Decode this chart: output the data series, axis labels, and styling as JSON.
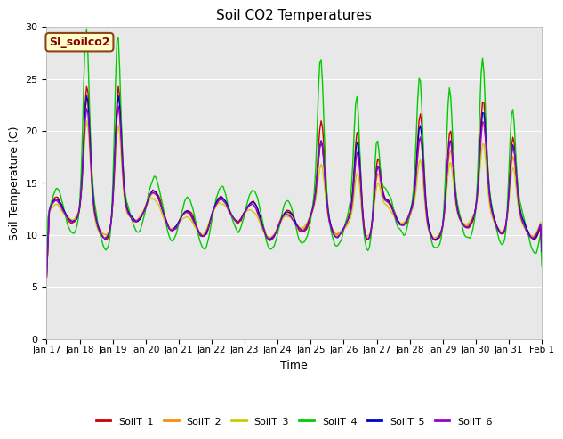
{
  "title": "Soil CO2 Temperatures",
  "xlabel": "Time",
  "ylabel": "Soil Temperature (C)",
  "ylim": [
    0,
    30
  ],
  "yticks": [
    0,
    5,
    10,
    15,
    20,
    25,
    30
  ],
  "annotation_text": "SI_soilco2",
  "annotation_color": "#8B0000",
  "annotation_bg": "#FFFFCC",
  "annotation_border": "#8B4513",
  "series_colors": [
    "#CC0000",
    "#FF8C00",
    "#CCCC00",
    "#00CC00",
    "#0000CC",
    "#9900CC"
  ],
  "series_names": [
    "SoilT_1",
    "SoilT_2",
    "SoilT_3",
    "SoilT_4",
    "SoilT_5",
    "SoilT_6"
  ],
  "bg_color": "#E8E8E8",
  "tick_labels": [
    "Jan 17",
    "Jan 18",
    "Jan 19",
    "Jan 20",
    "Jan 21",
    "Jan 22",
    "Jan 23",
    "Jan 24",
    "Jan 25",
    "Jan 26",
    "Jan 27",
    "Jan 28",
    "Jan 29",
    "Jan 30",
    "Jan 31",
    "Feb 1"
  ],
  "seed": 42
}
